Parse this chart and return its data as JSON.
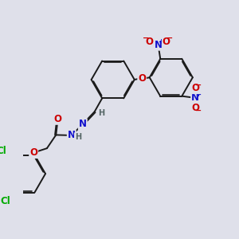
{
  "bg_color": "#dfe0ea",
  "bond_color": "#1a1a1a",
  "bond_width": 1.4,
  "dbo": 0.055,
  "atom_colors": {
    "O": "#cc0000",
    "N": "#1111cc",
    "Cl": "#00aa00",
    "H": "#556666",
    "C": "#1a1a1a"
  },
  "fs": 8.5,
  "fss": 7.0
}
